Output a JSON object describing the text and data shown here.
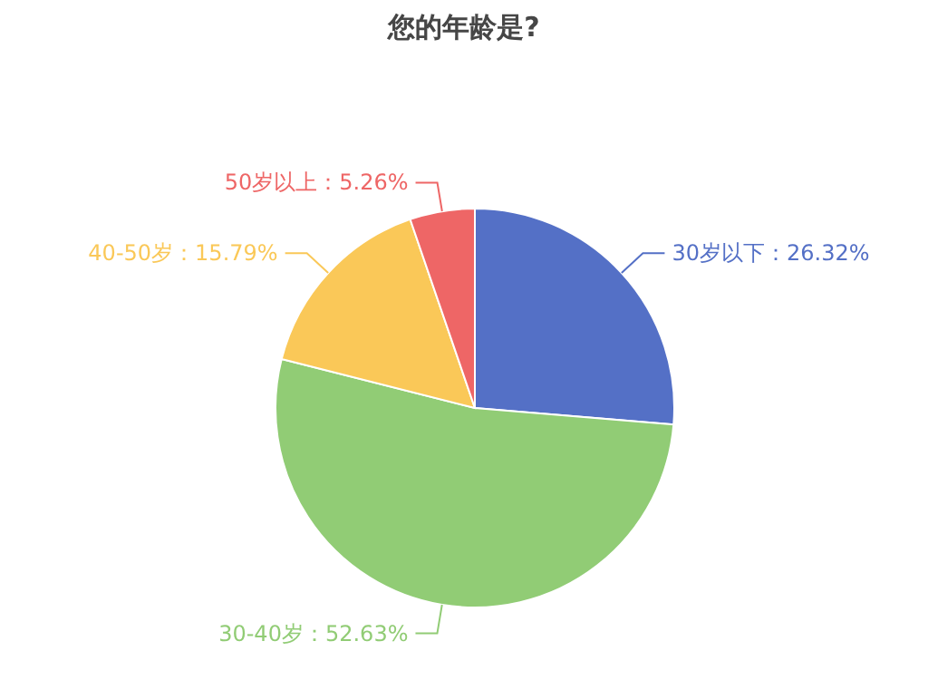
{
  "chart_data": {
    "type": "pie",
    "title": "您的年龄是?",
    "categories": [
      "30岁以下",
      "30-40岁",
      "40-50岁",
      "50岁以上"
    ],
    "values": [
      26.32,
      52.63,
      15.79,
      5.26
    ],
    "value_labels": [
      "：26.32%",
      "：52.63%",
      "：15.79%",
      "：5.26%"
    ],
    "colors": [
      "#5470c6",
      "#91cc75",
      "#fac858",
      "#ee6666"
    ]
  }
}
